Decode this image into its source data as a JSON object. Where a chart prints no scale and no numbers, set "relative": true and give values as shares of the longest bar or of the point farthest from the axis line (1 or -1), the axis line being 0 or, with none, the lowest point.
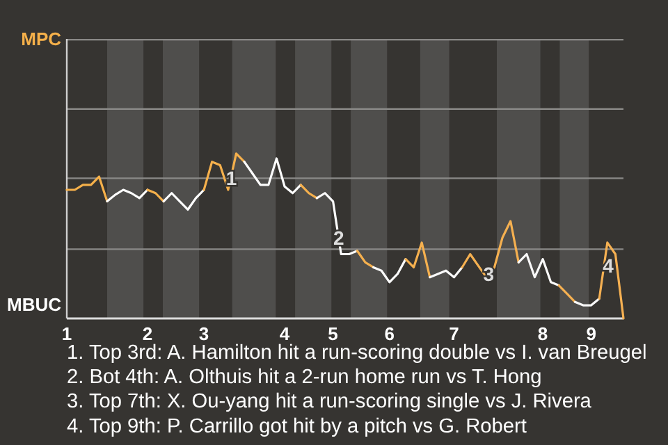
{
  "chart_data": {
    "type": "line",
    "relative": true,
    "categories": [
      "1",
      null,
      null,
      null,
      null,
      null,
      null,
      null,
      null,
      null,
      "2",
      null,
      null,
      null,
      null,
      null,
      null,
      "3",
      null,
      null,
      null,
      null,
      null,
      null,
      null,
      null,
      null,
      "4",
      null,
      null,
      null,
      null,
      null,
      "5",
      null,
      null,
      null,
      null,
      null,
      null,
      "6",
      null,
      null,
      null,
      null,
      null,
      null,
      null,
      "7",
      null,
      null,
      null,
      null,
      null,
      null,
      null,
      null,
      null,
      null,
      "8",
      null,
      null,
      null,
      null,
      null,
      "9",
      null,
      null,
      null,
      null
    ],
    "series": [
      {
        "name": "MPC",
        "color": "#f5b04a",
        "values": [
          0.78,
          0.78,
          0.81,
          0.81,
          0.86,
          0.71,
          null,
          null,
          null,
          null,
          null,
          null,
          null,
          null,
          null,
          null,
          null,
          null,
          null,
          null,
          null,
          null,
          null,
          null,
          null,
          null,
          null,
          null,
          null,
          null,
          null,
          null,
          null,
          null,
          null,
          null,
          null,
          null,
          null,
          null,
          null,
          null,
          null,
          null,
          null,
          null,
          null,
          null,
          null,
          null,
          null,
          null,
          null,
          null,
          null,
          null,
          null,
          null,
          null,
          null,
          null,
          null,
          null,
          null,
          null,
          null,
          null,
          null,
          null,
          null
        ]
      },
      {
        "name": "MBUC",
        "color": "#ffffff",
        "values": [
          null,
          null,
          null,
          null,
          null,
          0.71,
          0.75,
          0.78,
          0.76,
          0.73,
          0.78,
          null,
          null,
          null,
          null,
          null,
          null,
          null,
          null,
          null,
          null,
          null,
          null,
          null,
          null,
          null,
          null,
          null,
          null,
          null,
          null,
          null,
          null,
          null,
          null,
          null,
          null,
          null,
          null,
          null,
          null,
          null,
          null,
          null,
          null,
          null,
          null,
          null,
          null,
          null,
          null,
          null,
          null,
          null,
          null,
          null,
          null,
          null,
          null,
          null,
          null,
          null,
          null,
          null,
          null,
          null,
          null,
          null,
          null,
          null
        ]
      },
      {
        "color": "#f5b04b",
        "values": [
          null,
          null,
          null,
          null,
          null,
          null,
          null,
          null,
          null,
          null,
          0.78,
          0.76,
          0.71,
          null,
          null,
          null,
          null,
          null,
          null,
          null,
          null,
          null,
          null,
          null,
          null,
          null,
          null,
          null,
          null,
          null,
          null,
          null,
          null,
          null,
          null,
          null,
          null,
          null,
          null,
          null,
          null,
          null,
          null,
          null,
          null,
          null,
          null,
          null,
          null,
          null,
          null,
          null,
          null,
          null,
          null,
          null,
          null,
          null,
          null,
          null,
          null,
          null,
          null,
          null,
          null,
          null,
          null,
          null,
          null,
          null
        ]
      },
      {
        "color": "#fefefe",
        "values": [
          null,
          null,
          null,
          null,
          null,
          null,
          null,
          null,
          null,
          null,
          null,
          null,
          0.71,
          0.76,
          0.71,
          0.66,
          0.73,
          0.78,
          null,
          null,
          null,
          null,
          null,
          null,
          null,
          null,
          null,
          null,
          null,
          null,
          null,
          null,
          null,
          null,
          null,
          null,
          null,
          null,
          null,
          null,
          null,
          null,
          null,
          null,
          null,
          null,
          null,
          null,
          null,
          null,
          null,
          null,
          null,
          null,
          null,
          null,
          null,
          null,
          null,
          null,
          null,
          null,
          null,
          null,
          null,
          null,
          null,
          null,
          null,
          null
        ]
      },
      {
        "color": "#f5b04c",
        "values": [
          null,
          null,
          null,
          null,
          null,
          null,
          null,
          null,
          null,
          null,
          null,
          null,
          null,
          null,
          null,
          null,
          null,
          0.78,
          0.95,
          0.93,
          0.78,
          1,
          0.95,
          null,
          null,
          null,
          null,
          null,
          null,
          null,
          null,
          null,
          null,
          null,
          null,
          null,
          null,
          null,
          null,
          null,
          null,
          null,
          null,
          null,
          null,
          null,
          null,
          null,
          null,
          null,
          null,
          null,
          null,
          null,
          null,
          null,
          null,
          null,
          null,
          null,
          null,
          null,
          null,
          null,
          null,
          null,
          null,
          null,
          null,
          null
        ]
      },
      {
        "color": "#fdfdfd",
        "values": [
          null,
          null,
          null,
          null,
          null,
          null,
          null,
          null,
          null,
          null,
          null,
          null,
          null,
          null,
          null,
          null,
          null,
          null,
          null,
          null,
          null,
          null,
          0.95,
          0.88,
          0.81,
          0.81,
          0.97,
          0.8,
          0.76,
          0.81,
          null,
          null,
          null,
          null,
          null,
          null,
          null,
          null,
          null,
          null,
          null,
          null,
          null,
          null,
          null,
          null,
          null,
          null,
          null,
          null,
          null,
          null,
          null,
          null,
          null,
          null,
          null,
          null,
          null,
          null,
          null,
          null,
          null,
          null,
          null,
          null,
          null,
          null,
          null,
          null
        ]
      },
      {
        "color": "#f5b04d",
        "values": [
          null,
          null,
          null,
          null,
          null,
          null,
          null,
          null,
          null,
          null,
          null,
          null,
          null,
          null,
          null,
          null,
          null,
          null,
          null,
          null,
          null,
          null,
          null,
          null,
          null,
          null,
          null,
          null,
          null,
          0.81,
          0.76,
          0.73,
          null,
          null,
          null,
          null,
          null,
          null,
          null,
          null,
          null,
          null,
          null,
          null,
          null,
          null,
          null,
          null,
          null,
          null,
          null,
          null,
          null,
          null,
          null,
          null,
          null,
          null,
          null,
          null,
          null,
          null,
          null,
          null,
          null,
          null,
          null,
          null,
          null,
          null
        ]
      },
      {
        "color": "#fcfcfc",
        "values": [
          null,
          null,
          null,
          null,
          null,
          null,
          null,
          null,
          null,
          null,
          null,
          null,
          null,
          null,
          null,
          null,
          null,
          null,
          null,
          null,
          null,
          null,
          null,
          null,
          null,
          null,
          null,
          null,
          null,
          null,
          null,
          0.73,
          0.76,
          0.71,
          0.39,
          0.39,
          0.41,
          null,
          null,
          null,
          null,
          null,
          null,
          null,
          null,
          null,
          null,
          null,
          null,
          null,
          null,
          null,
          null,
          null,
          null,
          null,
          null,
          null,
          null,
          null,
          null,
          null,
          null,
          null,
          null,
          null,
          null,
          null,
          null,
          null
        ]
      },
      {
        "color": "#f5b04e",
        "values": [
          null,
          null,
          null,
          null,
          null,
          null,
          null,
          null,
          null,
          null,
          null,
          null,
          null,
          null,
          null,
          null,
          null,
          null,
          null,
          null,
          null,
          null,
          null,
          null,
          null,
          null,
          null,
          null,
          null,
          null,
          null,
          null,
          null,
          null,
          null,
          null,
          0.41,
          0.34,
          0.31,
          null,
          null,
          null,
          null,
          null,
          null,
          null,
          null,
          null,
          null,
          null,
          null,
          null,
          null,
          null,
          null,
          null,
          null,
          null,
          null,
          null,
          null,
          null,
          null,
          null,
          null,
          null,
          null,
          null,
          null,
          null
        ]
      },
      {
        "color": "#fbfbfb",
        "values": [
          null,
          null,
          null,
          null,
          null,
          null,
          null,
          null,
          null,
          null,
          null,
          null,
          null,
          null,
          null,
          null,
          null,
          null,
          null,
          null,
          null,
          null,
          null,
          null,
          null,
          null,
          null,
          null,
          null,
          null,
          null,
          null,
          null,
          null,
          null,
          null,
          null,
          null,
          0.31,
          0.29,
          0.22,
          0.27,
          0.36,
          null,
          null,
          null,
          null,
          null,
          null,
          null,
          null,
          null,
          null,
          null,
          null,
          null,
          null,
          null,
          null,
          null,
          null,
          null,
          null,
          null,
          null,
          null,
          null,
          null,
          null,
          null
        ]
      },
      {
        "color": "#f5b04f",
        "values": [
          null,
          null,
          null,
          null,
          null,
          null,
          null,
          null,
          null,
          null,
          null,
          null,
          null,
          null,
          null,
          null,
          null,
          null,
          null,
          null,
          null,
          null,
          null,
          null,
          null,
          null,
          null,
          null,
          null,
          null,
          null,
          null,
          null,
          null,
          null,
          null,
          null,
          null,
          null,
          null,
          null,
          null,
          0.36,
          0.31,
          0.46,
          0.25,
          null,
          null,
          null,
          null,
          null,
          null,
          null,
          null,
          null,
          null,
          null,
          null,
          null,
          null,
          null,
          null,
          null,
          null,
          null,
          null,
          null,
          null,
          null,
          null
        ]
      },
      {
        "color": "#fafafa",
        "values": [
          null,
          null,
          null,
          null,
          null,
          null,
          null,
          null,
          null,
          null,
          null,
          null,
          null,
          null,
          null,
          null,
          null,
          null,
          null,
          null,
          null,
          null,
          null,
          null,
          null,
          null,
          null,
          null,
          null,
          null,
          null,
          null,
          null,
          null,
          null,
          null,
          null,
          null,
          null,
          null,
          null,
          null,
          null,
          null,
          null,
          0.25,
          0.27,
          0.29,
          0.25,
          0.31,
          null,
          null,
          null,
          null,
          null,
          null,
          null,
          null,
          null,
          null,
          null,
          null,
          null,
          null,
          null,
          null,
          null,
          null,
          null,
          null
        ]
      },
      {
        "color": "#f5b050",
        "values": [
          null,
          null,
          null,
          null,
          null,
          null,
          null,
          null,
          null,
          null,
          null,
          null,
          null,
          null,
          null,
          null,
          null,
          null,
          null,
          null,
          null,
          null,
          null,
          null,
          null,
          null,
          null,
          null,
          null,
          null,
          null,
          null,
          null,
          null,
          null,
          null,
          null,
          null,
          null,
          null,
          null,
          null,
          null,
          null,
          null,
          null,
          null,
          null,
          null,
          0.31,
          0.39,
          0.32,
          0.25,
          0.31,
          0.49,
          0.59,
          0.34,
          null,
          null,
          null,
          null,
          null,
          null,
          null,
          null,
          null,
          null,
          null,
          null,
          null
        ]
      },
      {
        "color": "#f9f9f9",
        "values": [
          null,
          null,
          null,
          null,
          null,
          null,
          null,
          null,
          null,
          null,
          null,
          null,
          null,
          null,
          null,
          null,
          null,
          null,
          null,
          null,
          null,
          null,
          null,
          null,
          null,
          null,
          null,
          null,
          null,
          null,
          null,
          null,
          null,
          null,
          null,
          null,
          null,
          null,
          null,
          null,
          null,
          null,
          null,
          null,
          null,
          null,
          null,
          null,
          null,
          null,
          null,
          null,
          null,
          null,
          null,
          null,
          0.34,
          0.39,
          0.25,
          0.36,
          0.22,
          0.2,
          null,
          null,
          null,
          null,
          null,
          null,
          null,
          null
        ]
      },
      {
        "color": "#f5b051",
        "values": [
          null,
          null,
          null,
          null,
          null,
          null,
          null,
          null,
          null,
          null,
          null,
          null,
          null,
          null,
          null,
          null,
          null,
          null,
          null,
          null,
          null,
          null,
          null,
          null,
          null,
          null,
          null,
          null,
          null,
          null,
          null,
          null,
          null,
          null,
          null,
          null,
          null,
          null,
          null,
          null,
          null,
          null,
          null,
          null,
          null,
          null,
          null,
          null,
          null,
          null,
          null,
          null,
          null,
          null,
          null,
          null,
          null,
          null,
          null,
          null,
          null,
          0.2,
          0.15,
          0.1,
          null,
          null,
          null,
          null,
          null,
          null
        ]
      },
      {
        "color": "#f8f8f8",
        "values": [
          null,
          null,
          null,
          null,
          null,
          null,
          null,
          null,
          null,
          null,
          null,
          null,
          null,
          null,
          null,
          null,
          null,
          null,
          null,
          null,
          null,
          null,
          null,
          null,
          null,
          null,
          null,
          null,
          null,
          null,
          null,
          null,
          null,
          null,
          null,
          null,
          null,
          null,
          null,
          null,
          null,
          null,
          null,
          null,
          null,
          null,
          null,
          null,
          null,
          null,
          null,
          null,
          null,
          null,
          null,
          null,
          null,
          null,
          null,
          null,
          null,
          null,
          null,
          0.1,
          0.08,
          0.08,
          0.12,
          null,
          null,
          null
        ]
      },
      {
        "color": "#f5b052",
        "values": [
          null,
          null,
          null,
          null,
          null,
          null,
          null,
          null,
          null,
          null,
          null,
          null,
          null,
          null,
          null,
          null,
          null,
          null,
          null,
          null,
          null,
          null,
          null,
          null,
          null,
          null,
          null,
          null,
          null,
          null,
          null,
          null,
          null,
          null,
          null,
          null,
          null,
          null,
          null,
          null,
          null,
          null,
          null,
          null,
          null,
          null,
          null,
          null,
          null,
          null,
          null,
          null,
          null,
          null,
          null,
          null,
          null,
          null,
          null,
          null,
          null,
          null,
          null,
          null,
          null,
          null,
          0.12,
          0.46,
          0.39,
          0
        ]
      }
    ],
    "ref_lines": [
      {
        "axis": "y",
        "value": 0.42,
        "color": "#8a8987"
      },
      {
        "axis": "y",
        "value": 0.85,
        "color": "#8a8987"
      },
      {
        "axis": "y",
        "value": 1.27,
        "color": "#8a8987"
      },
      {
        "axis": "y",
        "value": 1.69,
        "color": "#8a8987"
      }
    ],
    "annotations": [
      {
        "text": "1",
        "y": 0.85
      },
      {
        "text": "2",
        "y": 0.49
      },
      {
        "text": "3",
        "y": 0.27
      },
      {
        "text": "4",
        "y": 0.32
      },
      "1. Top 3rd: A. Hamilton hit a run-scoring double vs I. van Breugel",
      "2. Bot 4th: A. Olthuis hit a 2-run home run vs T. Hong",
      "3. Top 7th: X. Ou-yang hit a run-scoring single vs J. Rivera",
      "4. Top 9th: P. Carrillo got hit by a pitch vs G. Robert"
    ]
  }
}
